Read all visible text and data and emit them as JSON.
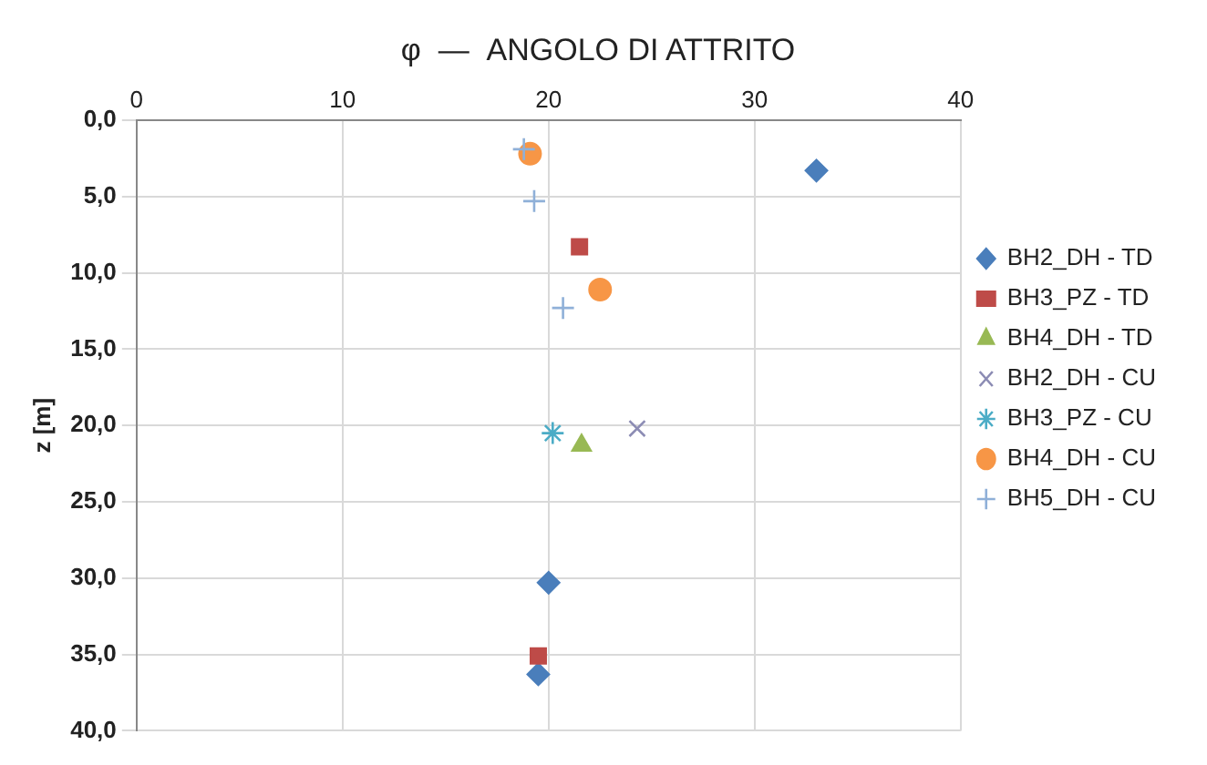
{
  "chart_data": {
    "type": "scatter",
    "title": "φ  —  ANGOLO DI ATTRITO",
    "ylabel": "z [m]",
    "xlim": [
      0,
      40
    ],
    "xticks": [
      0,
      10,
      20,
      30,
      40
    ],
    "ylim": [
      40,
      0
    ],
    "yticks": [
      {
        "value": 0,
        "label": "0,0"
      },
      {
        "value": 5,
        "label": "5,0"
      },
      {
        "value": 10,
        "label": "10,0"
      },
      {
        "value": 15,
        "label": "15,0"
      },
      {
        "value": 20,
        "label": "20,0"
      },
      {
        "value": 25,
        "label": "25,0"
      },
      {
        "value": 30,
        "label": "30,0"
      },
      {
        "value": 35,
        "label": "35,0"
      },
      {
        "value": 40,
        "label": "40,0"
      }
    ],
    "grid": true,
    "legend": "right",
    "series": [
      {
        "name": "BH2_DH - TD",
        "color": "#4a7ebb",
        "marker": "diamond",
        "x": [
          33.0,
          20.0,
          19.5
        ],
        "values": [
          3.3,
          30.3,
          36.3
        ]
      },
      {
        "name": "BH3_PZ - TD",
        "color": "#be4b48",
        "marker": "square",
        "x": [
          21.5,
          19.5
        ],
        "values": [
          8.3,
          35.1
        ]
      },
      {
        "name": "BH4_DH - TD",
        "color": "#98b954",
        "marker": "triangle",
        "x": [
          21.6
        ],
        "values": [
          21.3
        ]
      },
      {
        "name": "BH2_DH - CU",
        "color": "#8c8cb4",
        "marker": "cross",
        "x": [
          24.3
        ],
        "values": [
          20.2
        ]
      },
      {
        "name": "BH3_PZ - CU",
        "color": "#4bacc6",
        "marker": "cross",
        "x": [
          20.2
        ],
        "values": [
          20.5
        ]
      },
      {
        "name": "BH4_DH - CU",
        "color": "#f79646",
        "marker": "circle",
        "x": [
          19.1,
          22.5
        ],
        "values": [
          2.2,
          11.1
        ]
      },
      {
        "name": "BH5_DH - CU",
        "color": "#8fb0d8",
        "marker": "cross",
        "x": [
          18.8,
          19.3,
          20.7
        ],
        "values": [
          1.9,
          5.3,
          12.3
        ]
      }
    ]
  }
}
